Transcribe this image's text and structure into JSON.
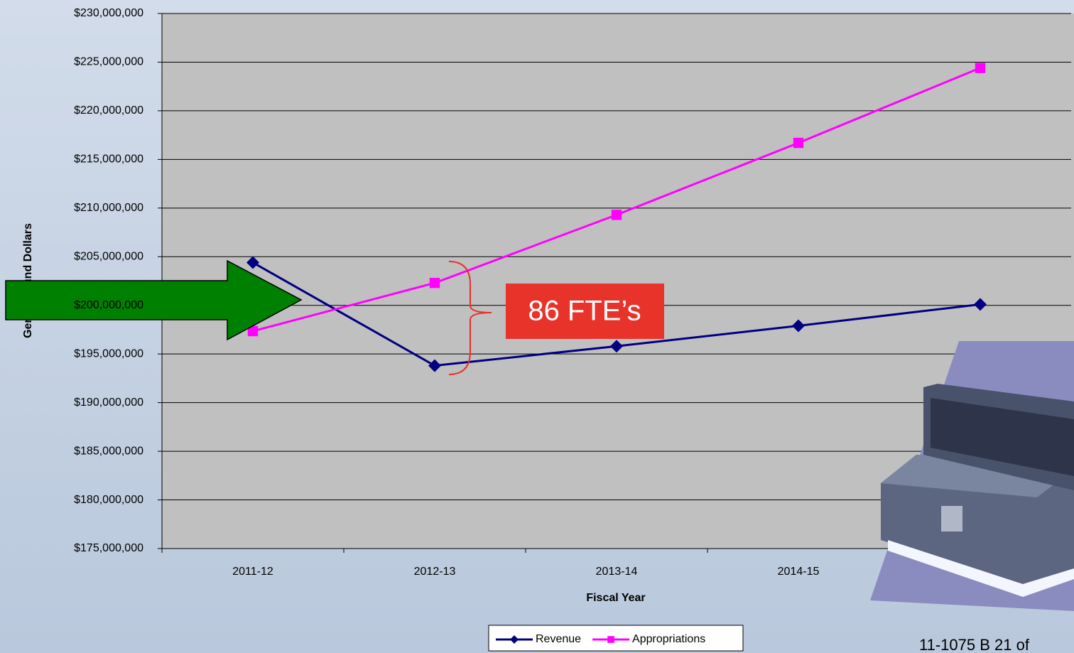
{
  "chart_data": {
    "type": "line",
    "x_label": "Fiscal Year",
    "y_label": "General Fund Dollars",
    "categories": [
      "2011-12",
      "2012-13",
      "2013-14",
      "2014-15",
      null
    ],
    "series": [
      {
        "name": "Revenue",
        "color": "#000080",
        "marker": "diamond",
        "values": [
          204400000,
          193800000,
          195800000,
          197900000,
          200100000
        ]
      },
      {
        "name": "Appropriations",
        "color": "#ff00ff",
        "marker": "square",
        "values": [
          197350000,
          202300000,
          209300000,
          216700000,
          224400000
        ]
      }
    ],
    "ylim": [
      175000000,
      230000000
    ],
    "yticks": [
      {
        "value": 175000000,
        "label": "$175,000,000"
      },
      {
        "value": 180000000,
        "label": "$180,000,000"
      },
      {
        "value": 185000000,
        "label": "$185,000,000"
      },
      {
        "value": 190000000,
        "label": "$190,000,000"
      },
      {
        "value": 195000000,
        "label": "$195,000,000"
      },
      {
        "value": 200000000,
        "label": "$200,000,000"
      },
      {
        "value": 205000000,
        "label": "$205,000,000"
      },
      {
        "value": 210000000,
        "label": "$210,000,000"
      },
      {
        "value": 215000000,
        "label": "$215,000,000"
      },
      {
        "value": 220000000,
        "label": "$220,000,000"
      },
      {
        "value": 225000000,
        "label": "$225,000,000"
      },
      {
        "value": 230000000,
        "label": "$230,000,000"
      }
    ],
    "grid": true,
    "legend": "bottom",
    "annotation": "86 FTE’s",
    "footer": "11-1075 B 21 of"
  }
}
